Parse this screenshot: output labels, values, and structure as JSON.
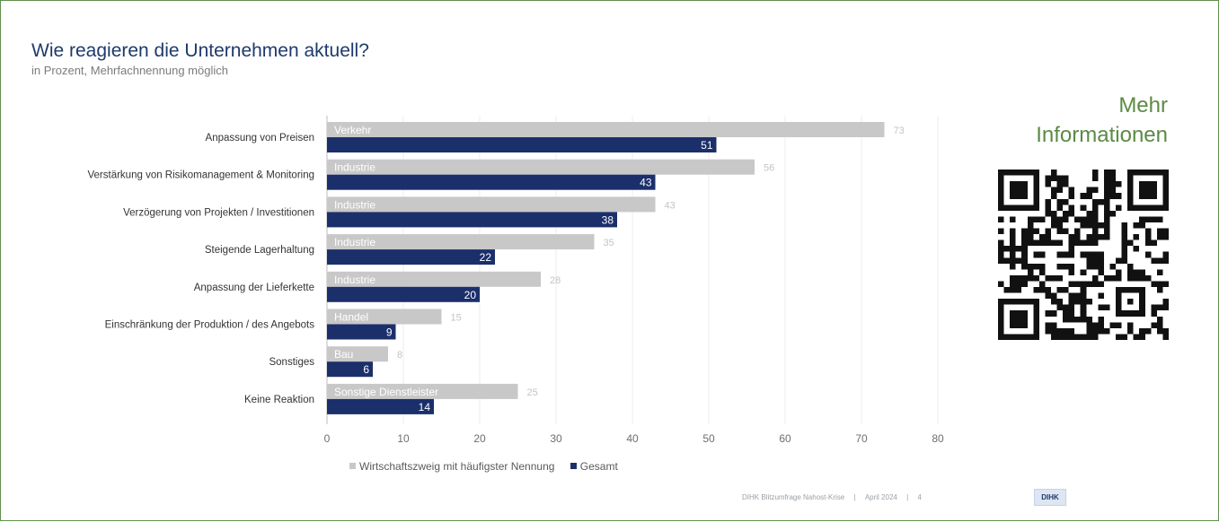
{
  "header": {
    "title": "Wie reagieren die Unternehmen aktuell?",
    "subtitle": "in Prozent, Mehrfachnennung möglich"
  },
  "sidebar": {
    "more_info_line1": "Mehr",
    "more_info_line2": "Informationen",
    "qr_icon": "qr-code-icon"
  },
  "footer": {
    "source": "DIHK Blitzumfrage Nahost-Krise",
    "date": "April 2024",
    "page": "4",
    "logo_text": "DIHK"
  },
  "colors": {
    "sector": "#c8c8c8",
    "total": "#1b2f6b",
    "title": "#1e3a6b",
    "accent_green": "#5c8a45"
  },
  "chart_data": {
    "type": "bar",
    "orientation": "horizontal",
    "categories": [
      "Anpassung von Preisen",
      "Verstärkung von Risikomanagement & Monitoring",
      "Verzögerung von Projekten / Investitionen",
      "Steigende Lagerhaltung",
      "Anpassung der Lieferkette",
      "Einschränkung der Produktion / des Angebots",
      "Sonstiges",
      "Keine Reaktion"
    ],
    "series": [
      {
        "name": "Wirtschaftszweig mit häufigster Nennung",
        "values": [
          73,
          56,
          43,
          35,
          28,
          15,
          8,
          25
        ],
        "bar_labels": [
          "Verkehr",
          "Industrie",
          "Industrie",
          "Industrie",
          "Industrie",
          "Handel",
          "Bau",
          "Sonstige Dienstleister"
        ]
      },
      {
        "name": "Gesamt",
        "values": [
          51,
          43,
          38,
          22,
          20,
          9,
          6,
          14
        ]
      }
    ],
    "xlim": [
      0,
      80
    ],
    "xticks": [
      0,
      10,
      20,
      30,
      40,
      50,
      60,
      70,
      80
    ],
    "grid": true,
    "legend_position": "bottom"
  }
}
